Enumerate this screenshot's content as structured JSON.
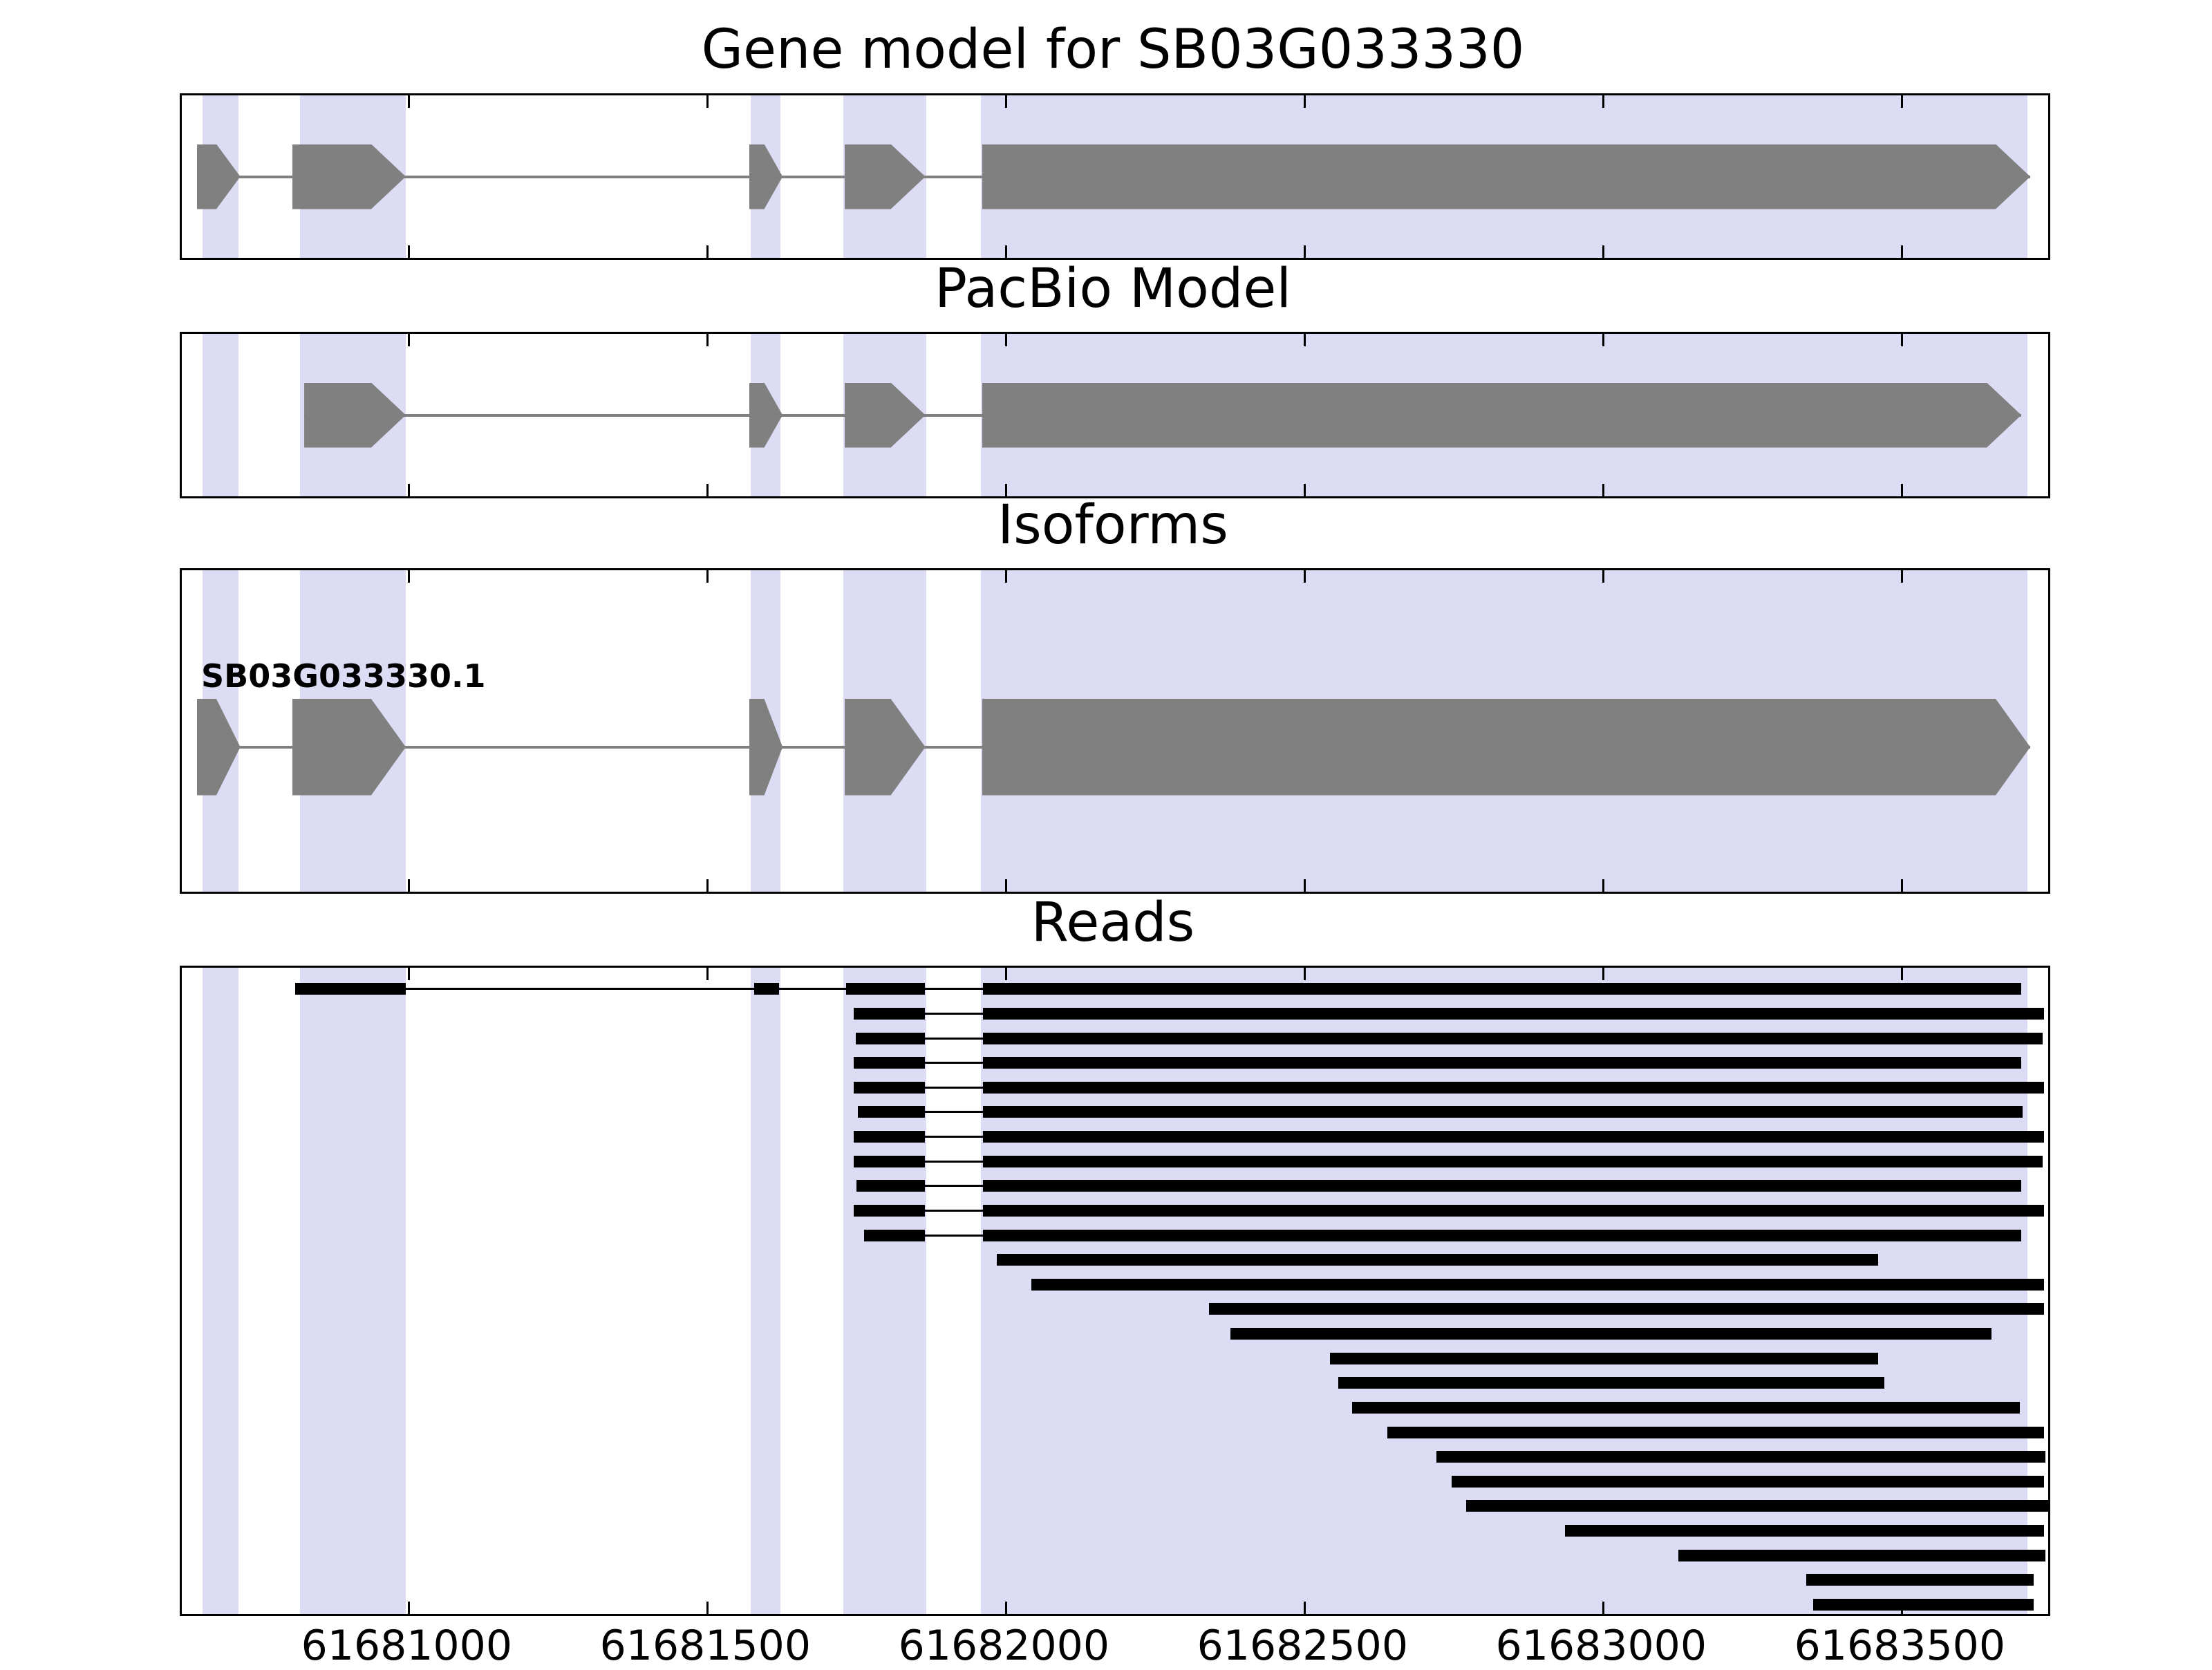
{
  "chart_data": {
    "type": "genome-browser",
    "x_range": [
      61680620,
      61683745
    ],
    "x_ticks": [
      61681000,
      61681500,
      61682000,
      61682500,
      61683000,
      61683500
    ],
    "x_tick_labels": [
      "61681000",
      "61681500",
      "61682000",
      "61682500",
      "61683000",
      "61683500"
    ],
    "colors": {
      "highlight_band": "#dcdcf5",
      "exon_fill": "#808080",
      "read_fill": "#000000",
      "axis": "#000000"
    },
    "highlight_bands": [
      [
        61680655,
        61680715
      ],
      [
        61680818,
        61680995
      ],
      [
        61681573,
        61681622
      ],
      [
        61681728,
        61681867
      ],
      [
        61681958,
        61683710
      ]
    ],
    "tracks": {
      "gene_model": {
        "title": "Gene model for SB03G033330",
        "strand": "+",
        "exons": [
          [
            61680645,
            61680718
          ],
          [
            61680805,
            61680995
          ],
          [
            61681570,
            61681626
          ],
          [
            61681730,
            61681865
          ],
          [
            61681960,
            61683715
          ]
        ]
      },
      "pacbio_model": {
        "title": "PacBio Model",
        "strand": "+",
        "exons": [
          [
            61680825,
            61680995
          ],
          [
            61681570,
            61681626
          ],
          [
            61681730,
            61681865
          ],
          [
            61681960,
            61683700
          ]
        ]
      },
      "isoforms": {
        "title": "Isoforms",
        "items": [
          {
            "label": "SB03G033330.1",
            "strand": "+",
            "exons": [
              [
                61680645,
                61680718
              ],
              [
                61680805,
                61680995
              ],
              [
                61681570,
                61681626
              ],
              [
                61681730,
                61681865
              ],
              [
                61681960,
                61683715
              ]
            ]
          }
        ]
      },
      "reads": {
        "title": "Reads",
        "items": [
          {
            "segments": [
              [
                61680810,
                61680995
              ],
              [
                61681578,
                61681620
              ],
              [
                61681732,
                61681864
              ],
              [
                61681962,
                61683700
              ]
            ]
          },
          {
            "segments": [
              [
                61681745,
                61681864
              ],
              [
                61681962,
                61683738
              ]
            ]
          },
          {
            "segments": [
              [
                61681748,
                61681864
              ],
              [
                61681962,
                61683736
              ]
            ]
          },
          {
            "segments": [
              [
                61681745,
                61681864
              ],
              [
                61681962,
                61683700
              ]
            ]
          },
          {
            "segments": [
              [
                61681745,
                61681864
              ],
              [
                61681962,
                61683738
              ]
            ]
          },
          {
            "segments": [
              [
                61681752,
                61681864
              ],
              [
                61681962,
                61683702
              ]
            ]
          },
          {
            "segments": [
              [
                61681745,
                61681864
              ],
              [
                61681962,
                61683738
              ]
            ]
          },
          {
            "segments": [
              [
                61681745,
                61681864
              ],
              [
                61681962,
                61683736
              ]
            ]
          },
          {
            "segments": [
              [
                61681750,
                61681864
              ],
              [
                61681962,
                61683700
              ]
            ]
          },
          {
            "segments": [
              [
                61681745,
                61681864
              ],
              [
                61681962,
                61683738
              ]
            ]
          },
          {
            "segments": [
              [
                61681762,
                61681864
              ],
              [
                61681962,
                61683700
              ]
            ]
          },
          {
            "segments": [
              [
                61681985,
                61683460
              ]
            ]
          },
          {
            "segments": [
              [
                61682043,
                61683738
              ]
            ]
          },
          {
            "segments": [
              [
                61682340,
                61683738
              ]
            ]
          },
          {
            "segments": [
              [
                61682376,
                61683650
              ]
            ]
          },
          {
            "segments": [
              [
                61682543,
                61683460
              ]
            ]
          },
          {
            "segments": [
              [
                61682556,
                61683471
              ]
            ]
          },
          {
            "segments": [
              [
                61682580,
                61683698
              ]
            ]
          },
          {
            "segments": [
              [
                61682638,
                61683738
              ]
            ]
          },
          {
            "segments": [
              [
                61682721,
                61683740
              ]
            ]
          },
          {
            "segments": [
              [
                61682746,
                61683738
              ]
            ]
          },
          {
            "segments": [
              [
                61682770,
                61683745
              ]
            ]
          },
          {
            "segments": [
              [
                61682936,
                61683738
              ]
            ]
          },
          {
            "segments": [
              [
                61683126,
                61683740
              ]
            ]
          },
          {
            "segments": [
              [
                61683340,
                61683721
              ]
            ]
          },
          {
            "segments": [
              [
                61683352,
                61683721
              ]
            ]
          }
        ]
      }
    }
  }
}
